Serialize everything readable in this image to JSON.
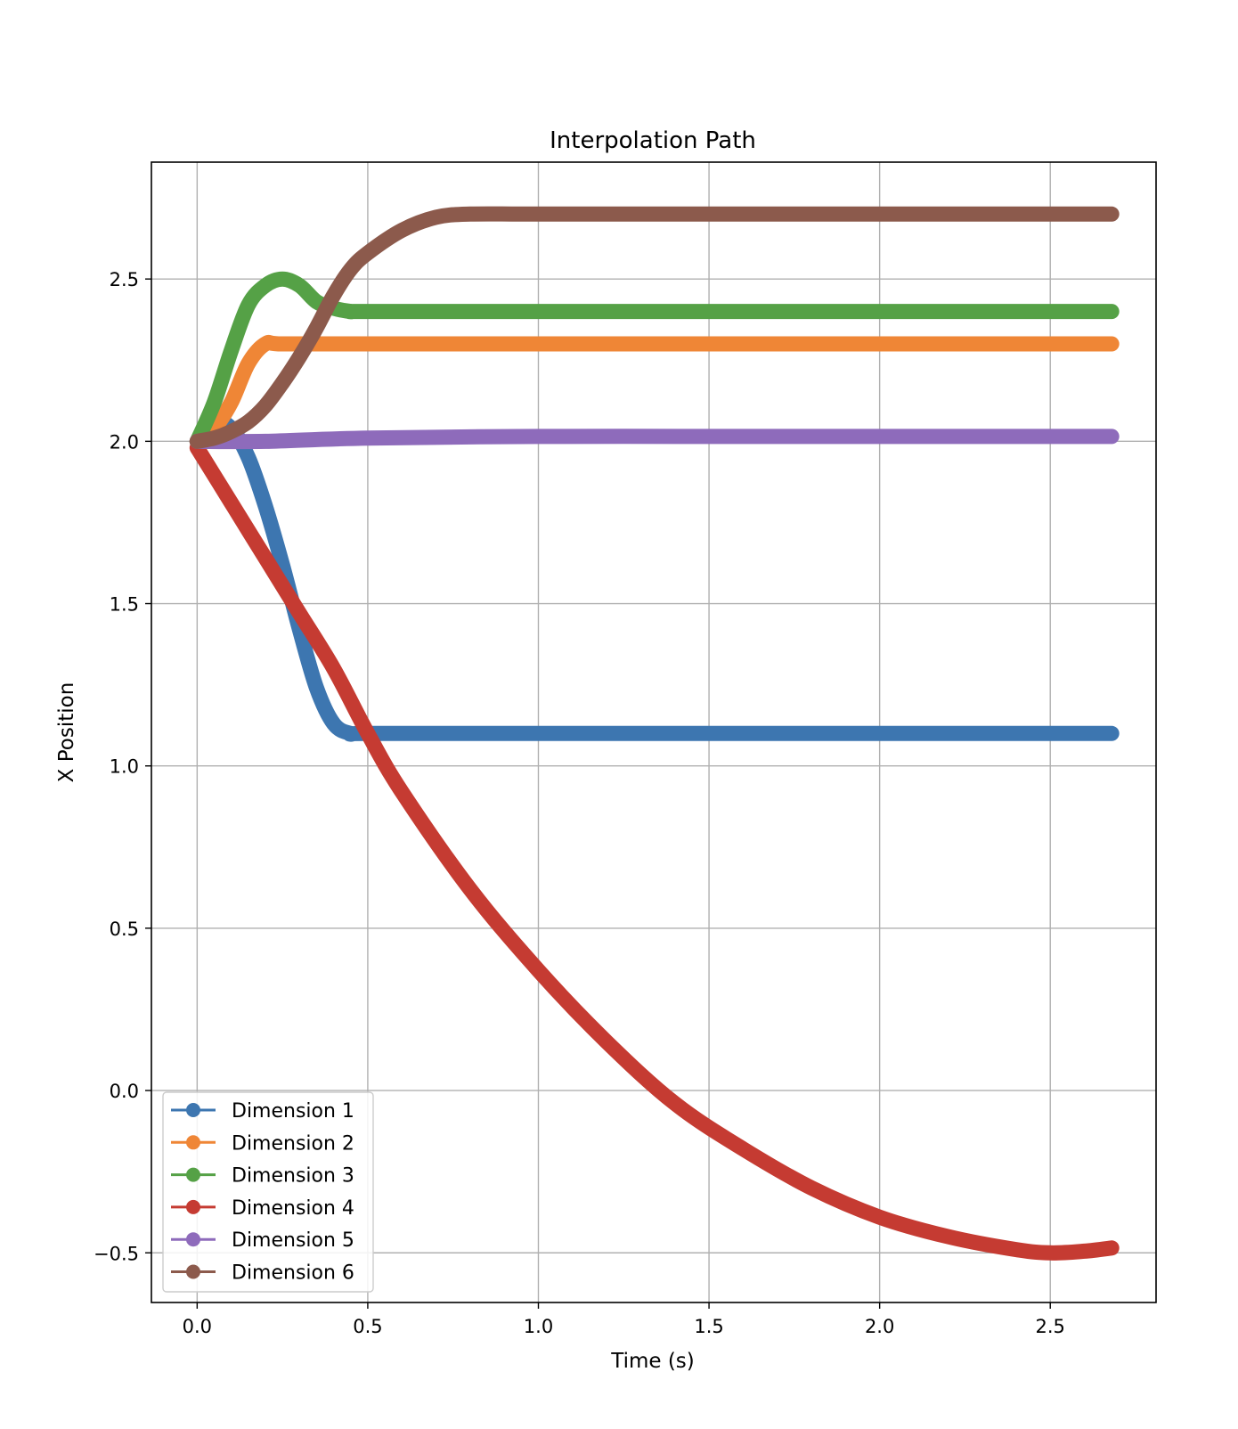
{
  "chart_data": {
    "type": "line",
    "title": "Interpolation Path",
    "xlabel": "Time (s)",
    "ylabel": "X Position",
    "xlim": [
      -0.134,
      2.81
    ],
    "ylim": [
      -0.653,
      2.86
    ],
    "x_ticks": [
      {
        "value": 0.0,
        "label": "0.0"
      },
      {
        "value": 0.5,
        "label": "0.5"
      },
      {
        "value": 1.0,
        "label": "1.0"
      },
      {
        "value": 1.5,
        "label": "1.5"
      },
      {
        "value": 2.0,
        "label": "2.0"
      },
      {
        "value": 2.5,
        "label": "2.5"
      }
    ],
    "y_ticks": [
      {
        "value": -0.5,
        "label": "−0.5"
      },
      {
        "value": 0.0,
        "label": "0.0"
      },
      {
        "value": 0.5,
        "label": "0.5"
      },
      {
        "value": 1.0,
        "label": "1.0"
      },
      {
        "value": 1.5,
        "label": "1.5"
      },
      {
        "value": 2.0,
        "label": "2.0"
      },
      {
        "value": 2.5,
        "label": "2.5"
      }
    ],
    "grid": true,
    "legend_position": "lower-left",
    "series": [
      {
        "name": "Dimension 1",
        "color": "#3d76b0",
        "points": [
          [
            0.0,
            2.0
          ],
          [
            0.05,
            2.06
          ],
          [
            0.1,
            2.04
          ],
          [
            0.15,
            1.95
          ],
          [
            0.2,
            1.8
          ],
          [
            0.25,
            1.62
          ],
          [
            0.3,
            1.42
          ],
          [
            0.35,
            1.24
          ],
          [
            0.4,
            1.13
          ],
          [
            0.45,
            1.1
          ],
          [
            0.5,
            1.1
          ],
          [
            1.0,
            1.1
          ],
          [
            1.5,
            1.1
          ],
          [
            2.0,
            1.1
          ],
          [
            2.5,
            1.1
          ],
          [
            2.68,
            1.1
          ]
        ]
      },
      {
        "name": "Dimension 2",
        "color": "#ef8636",
        "points": [
          [
            0.0,
            2.0
          ],
          [
            0.05,
            2.04
          ],
          [
            0.1,
            2.12
          ],
          [
            0.15,
            2.24
          ],
          [
            0.2,
            2.3
          ],
          [
            0.25,
            2.3
          ],
          [
            0.5,
            2.3
          ],
          [
            1.0,
            2.3
          ],
          [
            1.5,
            2.3
          ],
          [
            2.0,
            2.3
          ],
          [
            2.5,
            2.3
          ],
          [
            2.68,
            2.3
          ]
        ]
      },
      {
        "name": "Dimension 3",
        "color": "#55a146",
        "points": [
          [
            0.0,
            2.0
          ],
          [
            0.05,
            2.12
          ],
          [
            0.1,
            2.28
          ],
          [
            0.15,
            2.42
          ],
          [
            0.2,
            2.48
          ],
          [
            0.25,
            2.5
          ],
          [
            0.3,
            2.48
          ],
          [
            0.35,
            2.43
          ],
          [
            0.4,
            2.41
          ],
          [
            0.45,
            2.4
          ],
          [
            0.5,
            2.4
          ],
          [
            1.0,
            2.4
          ],
          [
            1.5,
            2.4
          ],
          [
            2.0,
            2.4
          ],
          [
            2.5,
            2.4
          ],
          [
            2.68,
            2.4
          ]
        ]
      },
      {
        "name": "Dimension 4",
        "color": "#c53b32",
        "points": [
          [
            0.0,
            1.98
          ],
          [
            0.1,
            1.81
          ],
          [
            0.2,
            1.64
          ],
          [
            0.3,
            1.47
          ],
          [
            0.4,
            1.3
          ],
          [
            0.5,
            1.1
          ],
          [
            0.6,
            0.92
          ],
          [
            0.8,
            0.62
          ],
          [
            1.0,
            0.37
          ],
          [
            1.2,
            0.15
          ],
          [
            1.4,
            -0.04
          ],
          [
            1.6,
            -0.18
          ],
          [
            1.8,
            -0.3
          ],
          [
            2.0,
            -0.39
          ],
          [
            2.2,
            -0.45
          ],
          [
            2.4,
            -0.49
          ],
          [
            2.5,
            -0.5
          ],
          [
            2.6,
            -0.495
          ],
          [
            2.68,
            -0.485
          ]
        ]
      },
      {
        "name": "Dimension 5",
        "color": "#8e6bbb",
        "points": [
          [
            0.0,
            2.0
          ],
          [
            0.2,
            2.0
          ],
          [
            0.5,
            2.01
          ],
          [
            1.0,
            2.015
          ],
          [
            1.5,
            2.015
          ],
          [
            2.0,
            2.015
          ],
          [
            2.5,
            2.015
          ],
          [
            2.68,
            2.015
          ]
        ]
      },
      {
        "name": "Dimension 6",
        "color": "#8c5a4c",
        "points": [
          [
            0.0,
            2.0
          ],
          [
            0.05,
            2.01
          ],
          [
            0.1,
            2.03
          ],
          [
            0.15,
            2.06
          ],
          [
            0.2,
            2.11
          ],
          [
            0.25,
            2.18
          ],
          [
            0.3,
            2.26
          ],
          [
            0.35,
            2.35
          ],
          [
            0.4,
            2.45
          ],
          [
            0.45,
            2.53
          ],
          [
            0.5,
            2.58
          ],
          [
            0.6,
            2.65
          ],
          [
            0.7,
            2.69
          ],
          [
            0.8,
            2.7
          ],
          [
            1.0,
            2.7
          ],
          [
            1.5,
            2.7
          ],
          [
            2.0,
            2.7
          ],
          [
            2.5,
            2.7
          ],
          [
            2.68,
            2.7
          ]
        ]
      }
    ]
  }
}
